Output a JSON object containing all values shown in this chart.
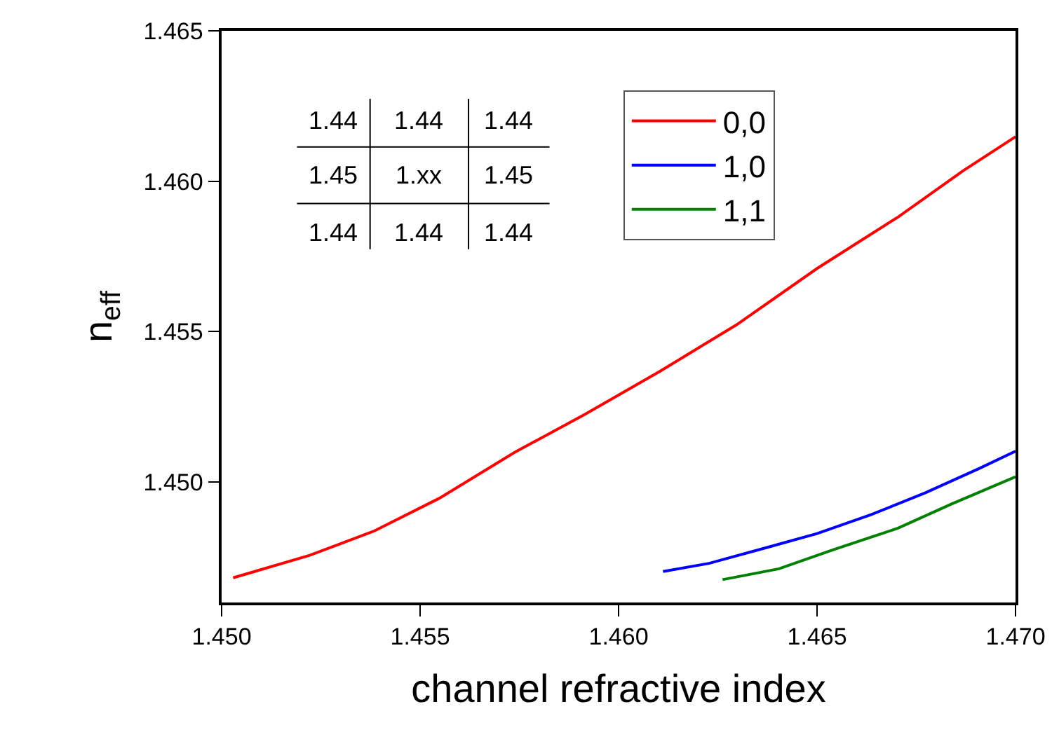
{
  "chart_data": {
    "type": "line",
    "xlabel": "channel refractive index",
    "ylabel": "n$_{eff}$",
    "series": [
      {
        "name": "0,0",
        "color": "#ff0000",
        "x": [
          1.45029,
          1.45222,
          1.45385,
          1.45548,
          1.45738,
          1.45915,
          1.46105,
          1.46296,
          1.465,
          1.46704,
          1.46867,
          1.47
        ],
        "values": [
          1.44682,
          1.44757,
          1.44838,
          1.44946,
          1.45099,
          1.45225,
          1.45369,
          1.45522,
          1.4571,
          1.45881,
          1.46034,
          1.46148
        ]
      },
      {
        "name": "1,0",
        "color": "#0000ff",
        "x": [
          1.46112,
          1.46228,
          1.46377,
          1.465,
          1.46636,
          1.46772,
          1.46908,
          1.47
        ],
        "values": [
          1.44703,
          1.4473,
          1.44784,
          1.44829,
          1.44892,
          1.44964,
          1.45045,
          1.45103
        ]
      },
      {
        "name": "1,1",
        "color": "#008000",
        "x": [
          1.46262,
          1.46404,
          1.4654,
          1.46704,
          1.4684,
          1.47
        ],
        "values": [
          1.44676,
          1.44712,
          1.44775,
          1.44847,
          1.44928,
          1.45018
        ]
      }
    ],
    "xlim": [
      1.45,
      1.47
    ],
    "ylim": [
      1.446,
      1.465
    ],
    "xticks": [
      {
        "value": 1.45,
        "label": "1.450"
      },
      {
        "value": 1.455,
        "label": "1.455"
      },
      {
        "value": 1.46,
        "label": "1.460"
      },
      {
        "value": 1.465,
        "label": "1.465"
      },
      {
        "value": 1.47,
        "label": "1.470"
      }
    ],
    "yticks": [
      {
        "value": 1.45,
        "label": "1.450"
      },
      {
        "value": 1.455,
        "label": "1.455"
      },
      {
        "value": 1.46,
        "label": "1.460"
      },
      {
        "value": 1.465,
        "label": "1.465"
      }
    ],
    "annotations": [
      "1.44",
      "1.44",
      "1.44",
      "1.45",
      "1.xx",
      "1.45",
      "1.44",
      "1.44",
      "1.44"
    ],
    "legend": "top right",
    "grid": false,
    "marker": "none",
    "line_style": "solid"
  }
}
